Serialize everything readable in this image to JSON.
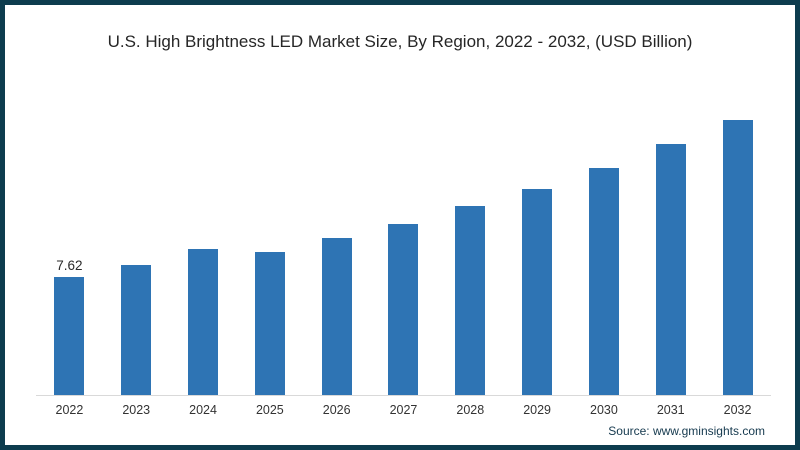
{
  "window": {
    "background": "#ffffff",
    "frame_color": "#0d3c4e"
  },
  "chart_data": {
    "type": "bar",
    "title": "U.S. High Brightness LED Market Size, By Region, 2022 - 2032, (USD Billion)",
    "categories": [
      "2022",
      "2023",
      "2024",
      "2025",
      "2026",
      "2027",
      "2028",
      "2029",
      "2030",
      "2031",
      "2032"
    ],
    "values": [
      7.62,
      8.37,
      9.38,
      9.17,
      10.13,
      11.01,
      12.13,
      13.27,
      14.6,
      16.15,
      17.71
    ],
    "data_labels": {
      "2022": "7.62"
    },
    "xlabel": "",
    "ylabel": "",
    "ylim": [
      0,
      19.3
    ],
    "grid": false,
    "legend": false,
    "bar_color": "#2e74b4",
    "axis_line_color": "#d9d9d9",
    "title_color": "#262626",
    "tick_label_color": "#333333"
  },
  "footer": {
    "source_label": "Source: www.gminsights.com"
  }
}
